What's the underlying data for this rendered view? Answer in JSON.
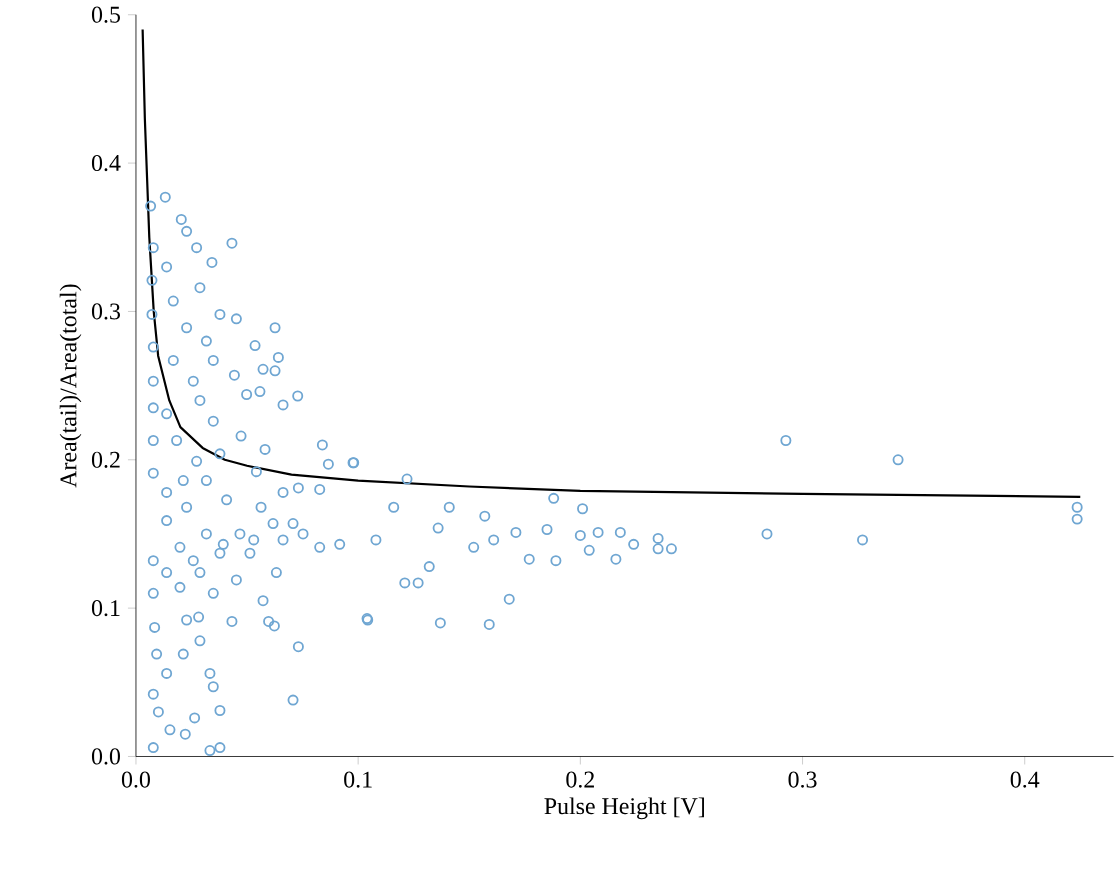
{
  "chart_data": {
    "type": "scatter",
    "xlabel": "Pulse Height [V]",
    "ylabel": "Area(tail)/Area(total)",
    "xlim": [
      0,
      0.44
    ],
    "ylim": [
      0,
      0.5
    ],
    "xticks": [
      {
        "value": 0,
        "label": "0.0"
      },
      0.1,
      0.2,
      0.3,
      0.4
    ],
    "yticks": [
      {
        "value": 0,
        "label": "0.0"
      },
      0.1,
      0.2,
      0.3,
      0.4,
      0.5
    ],
    "series": [
      {
        "color": "#6fa6d2",
        "marker": "circle",
        "x": [
          0.2925,
          0.343,
          0.4236,
          0.4236,
          0.284,
          0.327,
          0.241,
          0.235,
          0.235,
          0.224,
          0.216,
          0.218,
          0.208,
          0.201,
          0.188,
          0.185,
          0.189,
          0.177,
          0.168,
          0.159,
          0.137,
          0.104,
          0.122,
          0.098,
          0.141,
          0.157,
          0.161,
          0.171,
          0.204,
          0.2,
          0.121,
          0.127,
          0.132,
          0.108,
          0.116,
          0.136,
          0.152,
          0.0132,
          0.0066,
          0.0204,
          0.0432,
          0.0228,
          0.0273,
          0.0342,
          0.0452,
          0.0626,
          0.0641,
          0.0536,
          0.0572,
          0.0626,
          0.0443,
          0.0728,
          0.0662,
          0.0558,
          0.0498,
          0.0348,
          0.0473,
          0.0581,
          0.0839,
          0.0866,
          0.0977,
          0.0731,
          0.0827,
          0.0542,
          0.0662,
          0.0563,
          0.0617,
          0.0752,
          0.0827,
          0.0917,
          0.053,
          0.0452,
          0.0572,
          0.0597,
          0.0623,
          0.0432,
          0.1043,
          0.0731,
          0.0707,
          0.0333,
          0.0348,
          0.0378,
          0.0378,
          0.0333,
          0.0264,
          0.0222,
          0.0153,
          0.0078,
          0.0101,
          0.0078,
          0.0138,
          0.0093,
          0.0213,
          0.0288,
          0.0228,
          0.0282,
          0.0078,
          0.0078,
          0.0084,
          0.0138,
          0.0198,
          0.0258,
          0.0317,
          0.0378,
          0.0228,
          0.0138,
          0.0078,
          0.0078,
          0.0078,
          0.0078,
          0.0078,
          0.0072,
          0.0072,
          0.0078,
          0.0138,
          0.0168,
          0.0228,
          0.0288,
          0.0317,
          0.0378,
          0.0348,
          0.0258,
          0.0288,
          0.0378,
          0.0273,
          0.0183,
          0.0138,
          0.0168,
          0.0213,
          0.0408,
          0.0317,
          0.0468,
          0.0138,
          0.0198,
          0.0288,
          0.0348,
          0.0393,
          0.0662,
          0.0632,
          0.0707,
          0.0513
        ],
        "values": [
          0.213,
          0.2,
          0.168,
          0.16,
          0.15,
          0.146,
          0.14,
          0.147,
          0.14,
          0.143,
          0.133,
          0.151,
          0.151,
          0.167,
          0.174,
          0.153,
          0.132,
          0.133,
          0.106,
          0.089,
          0.09,
          0.093,
          0.187,
          0.198,
          0.168,
          0.162,
          0.146,
          0.151,
          0.139,
          0.149,
          0.117,
          0.117,
          0.128,
          0.146,
          0.168,
          0.154,
          0.141,
          0.377,
          0.371,
          0.362,
          0.346,
          0.354,
          0.343,
          0.333,
          0.295,
          0.289,
          0.269,
          0.277,
          0.261,
          0.26,
          0.257,
          0.243,
          0.237,
          0.246,
          0.244,
          0.226,
          0.216,
          0.207,
          0.21,
          0.197,
          0.198,
          0.181,
          0.18,
          0.192,
          0.178,
          0.168,
          0.157,
          0.15,
          0.141,
          0.143,
          0.146,
          0.119,
          0.105,
          0.091,
          0.088,
          0.091,
          0.092,
          0.074,
          0.038,
          0.056,
          0.047,
          0.031,
          0.006,
          0.004,
          0.026,
          0.015,
          0.018,
          0.006,
          0.03,
          0.042,
          0.056,
          0.069,
          0.069,
          0.078,
          0.092,
          0.094,
          0.132,
          0.11,
          0.087,
          0.124,
          0.141,
          0.132,
          0.15,
          0.137,
          0.168,
          0.178,
          0.191,
          0.213,
          0.235,
          0.253,
          0.276,
          0.298,
          0.321,
          0.343,
          0.33,
          0.307,
          0.289,
          0.316,
          0.28,
          0.298,
          0.267,
          0.253,
          0.24,
          0.204,
          0.199,
          0.213,
          0.231,
          0.267,
          0.186,
          0.173,
          0.186,
          0.15,
          0.159,
          0.114,
          0.124,
          0.11,
          0.143,
          0.146,
          0.124,
          0.157,
          0.137
        ]
      },
      {
        "type": "line",
        "color": "#000000",
        "marker": "none",
        "line_style": "solid",
        "x": [
          0.003,
          0.004,
          0.005,
          0.006,
          0.008,
          0.01,
          0.015,
          0.02,
          0.03,
          0.04,
          0.05,
          0.07,
          0.1,
          0.15,
          0.2,
          0.3,
          0.425
        ],
        "values": [
          0.49,
          0.43,
          0.39,
          0.35,
          0.3,
          0.27,
          0.24,
          0.222,
          0.208,
          0.2,
          0.196,
          0.19,
          0.186,
          0.182,
          0.179,
          0.177,
          0.175
        ]
      }
    ]
  }
}
